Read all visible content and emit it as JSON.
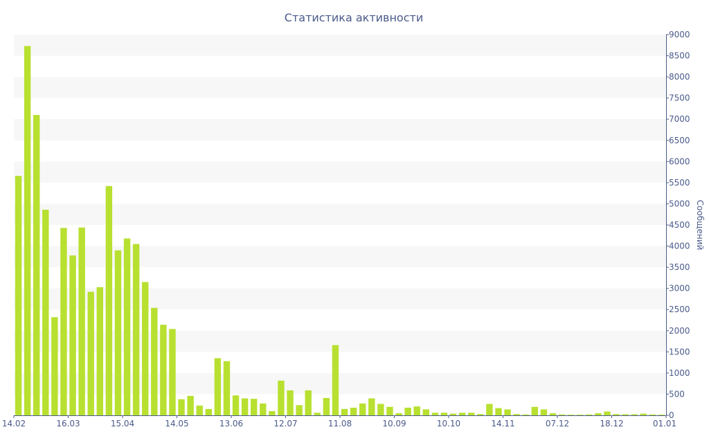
{
  "chart_data": {
    "type": "bar",
    "title": "Статистика активности",
    "ylabel": "Сообщений",
    "xlabel": "",
    "ylim": [
      0,
      9000
    ],
    "yticks": [
      0,
      500,
      1000,
      1500,
      2000,
      2500,
      3000,
      3500,
      4000,
      4500,
      5000,
      5500,
      6000,
      6500,
      7000,
      7500,
      8000,
      8500,
      9000
    ],
    "y_axis_side": "right",
    "grid": "alternating horizontal bands",
    "x_tick_labels": [
      {
        "index": 0,
        "label": "14.02"
      },
      {
        "index": 6,
        "label": "16.03"
      },
      {
        "index": 12,
        "label": "15.04"
      },
      {
        "index": 18,
        "label": "14.05"
      },
      {
        "index": 24,
        "label": "13.06"
      },
      {
        "index": 30,
        "label": "12.07"
      },
      {
        "index": 36,
        "label": "11.08"
      },
      {
        "index": 42,
        "label": "10.09"
      },
      {
        "index": 48,
        "label": "10.10"
      },
      {
        "index": 54,
        "label": "14.11"
      },
      {
        "index": 60,
        "label": "07.12"
      },
      {
        "index": 66,
        "label": "18.12"
      },
      {
        "index": 72,
        "label": "01.01"
      }
    ],
    "values": [
      5660,
      8730,
      7100,
      4860,
      2320,
      4430,
      3780,
      4440,
      2920,
      3030,
      5420,
      3900,
      4180,
      4050,
      3150,
      2540,
      2140,
      2040,
      380,
      460,
      230,
      150,
      1350,
      1280,
      470,
      400,
      390,
      280,
      100,
      820,
      590,
      240,
      590,
      60,
      410,
      1660,
      150,
      180,
      280,
      400,
      270,
      200,
      50,
      180,
      210,
      140,
      60,
      60,
      40,
      60,
      60,
      30,
      270,
      170,
      140,
      30,
      20,
      200,
      140,
      50,
      20,
      15,
      15,
      20,
      50,
      90,
      30,
      25,
      25,
      40,
      20,
      15
    ],
    "bar_color": "#b8e030",
    "axis_color": "#4a5a8a"
  }
}
